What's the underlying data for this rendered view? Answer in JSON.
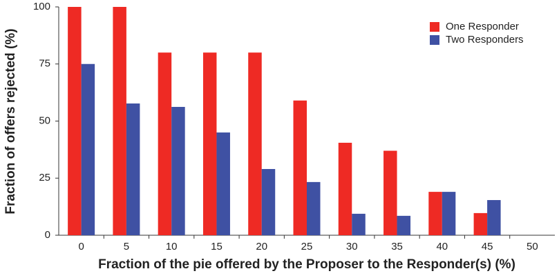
{
  "chart_data": {
    "type": "bar",
    "xlabel": "Fraction of the pie offered by the Proposer to the Responder(s) (%)",
    "ylabel": "Fraction of offers rejected (%)",
    "categories": [
      "0",
      "5",
      "10",
      "15",
      "20",
      "25",
      "30",
      "35",
      "40",
      "45",
      "50"
    ],
    "series": [
      {
        "name": "One Responder",
        "color": "#ee2a24",
        "values": [
          100,
          100,
          80,
          80,
          80,
          59,
          40.5,
          37,
          19,
          9.7,
          0
        ]
      },
      {
        "name": "Two Responders",
        "color": "#3f51a3",
        "values": [
          75,
          57.7,
          56.2,
          45,
          29,
          23.3,
          9.4,
          8.5,
          19,
          15.4,
          0
        ]
      }
    ],
    "ylim": [
      0,
      100
    ],
    "yticks": [
      0,
      25,
      50,
      75,
      100
    ],
    "grid": false,
    "legend": "upper right"
  }
}
